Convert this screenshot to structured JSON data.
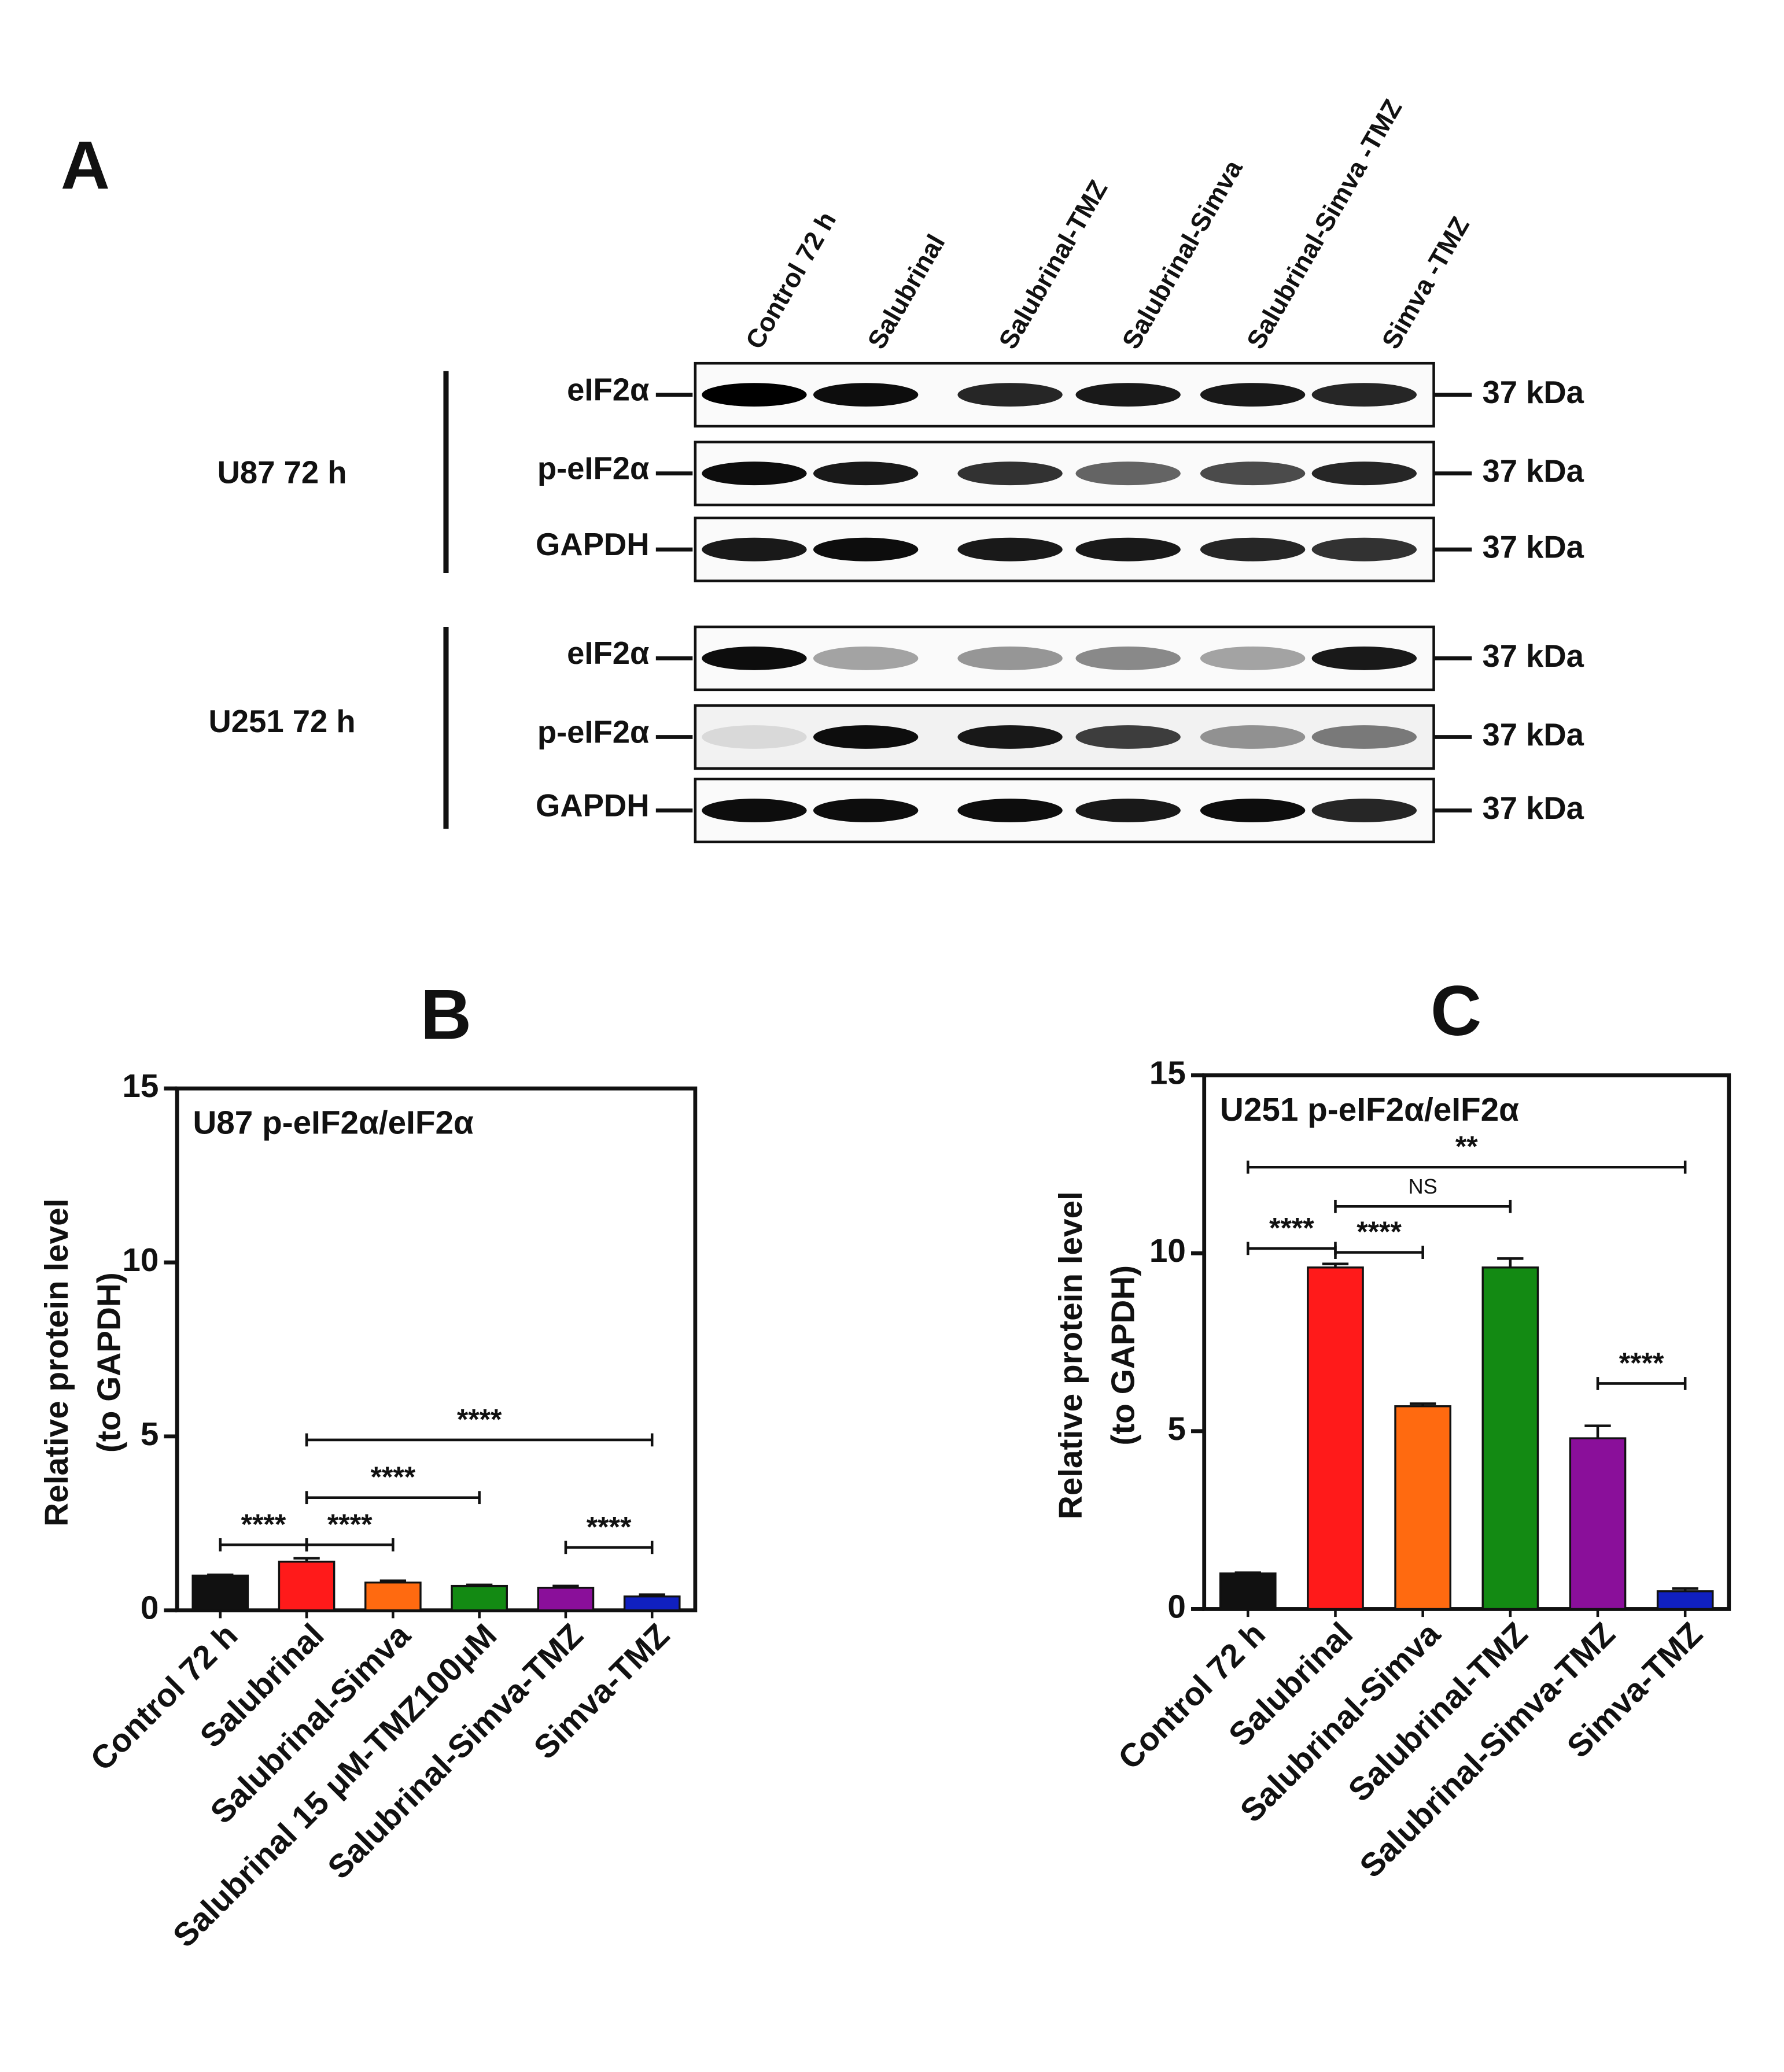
{
  "panel_a": {
    "label": "A",
    "lanes": [
      "Control 72 h",
      "Salubrinal",
      "Salubrinal-TMZ",
      "Salubrinal-Simva",
      "Salubrinal-Simva -TMZ",
      "Simva -TMZ"
    ],
    "cell_lines": [
      {
        "label": "U87 72 h",
        "blots": [
          {
            "protein": "eIF2α",
            "size": "37 kDa"
          },
          {
            "protein": "p-eIF2α",
            "size": "37 kDa"
          },
          {
            "protein": "GAPDH",
            "size": "37 kDa"
          }
        ]
      },
      {
        "label": "U251 72 h",
        "blots": [
          {
            "protein": "eIF2α",
            "size": "37 kDa"
          },
          {
            "protein": "p-eIF2α",
            "size": "37 kDa"
          },
          {
            "protein": "GAPDH",
            "size": "37 kDa"
          }
        ]
      }
    ]
  },
  "chart_data": [
    {
      "type": "bar",
      "title": "B",
      "subtitle": "U87 p-eIF2α/eIF2α",
      "ylabel": [
        "Relative protein level",
        "(to GAPDH)"
      ],
      "categories": [
        "Control 72 h",
        "Salubrinal",
        "Salubrinal-Simva",
        "Salubrinal 15 μM-TMZ100μM",
        "Salubrinal-Simva-TMZ",
        "Simva-TMZ"
      ],
      "values": [
        1.0,
        1.4,
        0.8,
        0.7,
        0.65,
        0.4
      ],
      "errors": [
        0.02,
        0.1,
        0.05,
        0.03,
        0.05,
        0.05
      ],
      "colors": [
        "#111111",
        "#ff1a1a",
        "#ff6a10",
        "#138a13",
        "#8a0f9a",
        "#1020c0"
      ],
      "ylim": [
        0,
        15
      ],
      "yticks": [
        0,
        5,
        10,
        15
      ],
      "annotations": [
        {
          "text": "****",
          "start": "Control 72 h",
          "end": "Salubrinal"
        },
        {
          "text": "****",
          "start": "Salubrinal",
          "end": "Salubrinal-Simva"
        },
        {
          "text": "****",
          "start": "Salubrinal",
          "end": "Salubrinal 15 μM-TMZ100μM"
        },
        {
          "text": "****",
          "start": "Salubrinal",
          "end": "Simva-TMZ"
        },
        {
          "text": "****",
          "start": "Salubrinal-Simva-TMZ",
          "end": "Simva-TMZ"
        }
      ]
    },
    {
      "type": "bar",
      "title": "C",
      "subtitle": "U251 p-eIF2α/eIF2α",
      "ylabel": [
        "Relative protein level",
        "(to GAPDH)"
      ],
      "categories": [
        "Control 72 h",
        "Salubrinal",
        "Salubrinal-Simva",
        "Salubrinal-TMZ",
        "Salubrinal-Simva-TMZ",
        "Simva-TMZ"
      ],
      "values": [
        1.0,
        9.6,
        5.7,
        9.6,
        4.8,
        0.5
      ],
      "errors": [
        0.02,
        0.1,
        0.07,
        0.25,
        0.35,
        0.08
      ],
      "colors": [
        "#111111",
        "#ff1a1a",
        "#ff6a10",
        "#138a13",
        "#8a0f9a",
        "#1020c0"
      ],
      "ylim": [
        0,
        15
      ],
      "yticks": [
        0,
        5,
        10,
        15
      ],
      "annotations": [
        {
          "text": "****",
          "start": "Control 72 h",
          "end": "Salubrinal"
        },
        {
          "text": "****",
          "start": "Salubrinal",
          "end": "Salubrinal-Simva"
        },
        {
          "text": "NS",
          "start": "Salubrinal",
          "end": "Salubrinal-TMZ"
        },
        {
          "text": "**",
          "start": "Control 72 h",
          "end": "Simva-TMZ"
        },
        {
          "text": "****",
          "start": "Salubrinal-Simva-TMZ",
          "end": "Simva-TMZ"
        }
      ]
    }
  ]
}
